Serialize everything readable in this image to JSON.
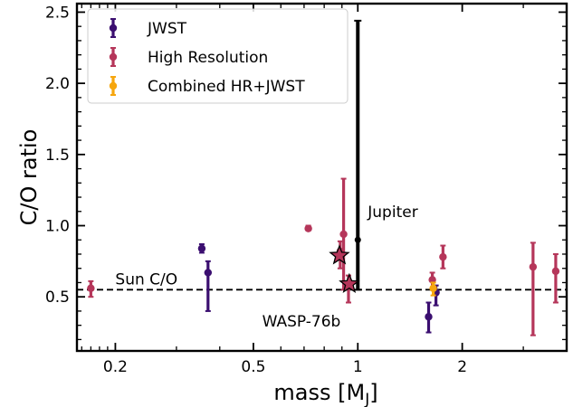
{
  "chart_data": {
    "type": "scatter",
    "xlabel_main": "mass [M",
    "xlabel_sub": "J",
    "xlabel_end": "]",
    "ylabel": "C/O ratio",
    "xscale": "log",
    "xlim": [
      0.155,
      4.0
    ],
    "ylim": [
      0.12,
      2.56
    ],
    "grid": false,
    "legend_position": "upper-left",
    "xticks": [
      {
        "value": 0.2,
        "label": "0.2"
      },
      {
        "value": 0.5,
        "label": "0.5"
      },
      {
        "value": 1,
        "label": "1"
      },
      {
        "value": 2,
        "label": "2"
      }
    ],
    "yticks": [
      {
        "value": 0.5,
        "label": "0.5"
      },
      {
        "value": 1.0,
        "label": "1.0"
      },
      {
        "value": 1.5,
        "label": "1.5"
      },
      {
        "value": 2.0,
        "label": "2.0"
      },
      {
        "value": 2.5,
        "label": "2.5"
      }
    ],
    "series": [
      {
        "name": "JWST",
        "color": "#3b0f70",
        "points": [
          {
            "x": 0.355,
            "y": 0.84,
            "lo": 0.81,
            "hi": 0.87
          },
          {
            "x": 0.37,
            "y": 0.67,
            "lo": 0.4,
            "hi": 0.75
          },
          {
            "x": 1.6,
            "y": 0.36,
            "lo": 0.25,
            "hi": 0.46
          },
          {
            "x": 1.68,
            "y": 0.53,
            "lo": 0.44,
            "hi": 0.58
          }
        ]
      },
      {
        "name": "High Resolution",
        "color": "#b5365a",
        "points": [
          {
            "x": 0.17,
            "y": 0.56,
            "lo": 0.5,
            "hi": 0.61
          },
          {
            "x": 0.72,
            "y": 0.98,
            "lo": 0.97,
            "hi": 1.0
          },
          {
            "x": 0.89,
            "y": 0.82,
            "lo": 0.7,
            "hi": 0.89
          },
          {
            "x": 0.91,
            "y": 0.94,
            "lo": 0.55,
            "hi": 1.33
          },
          {
            "x": 0.94,
            "y": 0.57,
            "lo": 0.46,
            "hi": 0.65
          },
          {
            "x": 1.64,
            "y": 0.62,
            "lo": 0.56,
            "hi": 0.67
          },
          {
            "x": 1.76,
            "y": 0.78,
            "lo": 0.7,
            "hi": 0.86
          },
          {
            "x": 3.2,
            "y": 0.71,
            "lo": 0.23,
            "hi": 0.88
          },
          {
            "x": 3.72,
            "y": 0.68,
            "lo": 0.46,
            "hi": 0.8
          }
        ]
      },
      {
        "name": "Combined HR+JWST",
        "color": "#f6a60e",
        "points": [
          {
            "x": 1.65,
            "y": 0.56,
            "lo": 0.51,
            "hi": 0.6
          }
        ]
      }
    ],
    "stars": [
      {
        "x": 0.885,
        "y": 0.79
      },
      {
        "x": 0.945,
        "y": 0.59
      }
    ],
    "jupiter": {
      "x": 1.0,
      "y": 0.9,
      "lo": 0.55,
      "hi": 2.44,
      "label": "Jupiter"
    },
    "sun_line": {
      "y": 0.55,
      "label": "Sun C/O"
    },
    "annotations": [
      {
        "text": "WASP-76b",
        "x": 0.53,
        "y": 0.33
      }
    ]
  }
}
